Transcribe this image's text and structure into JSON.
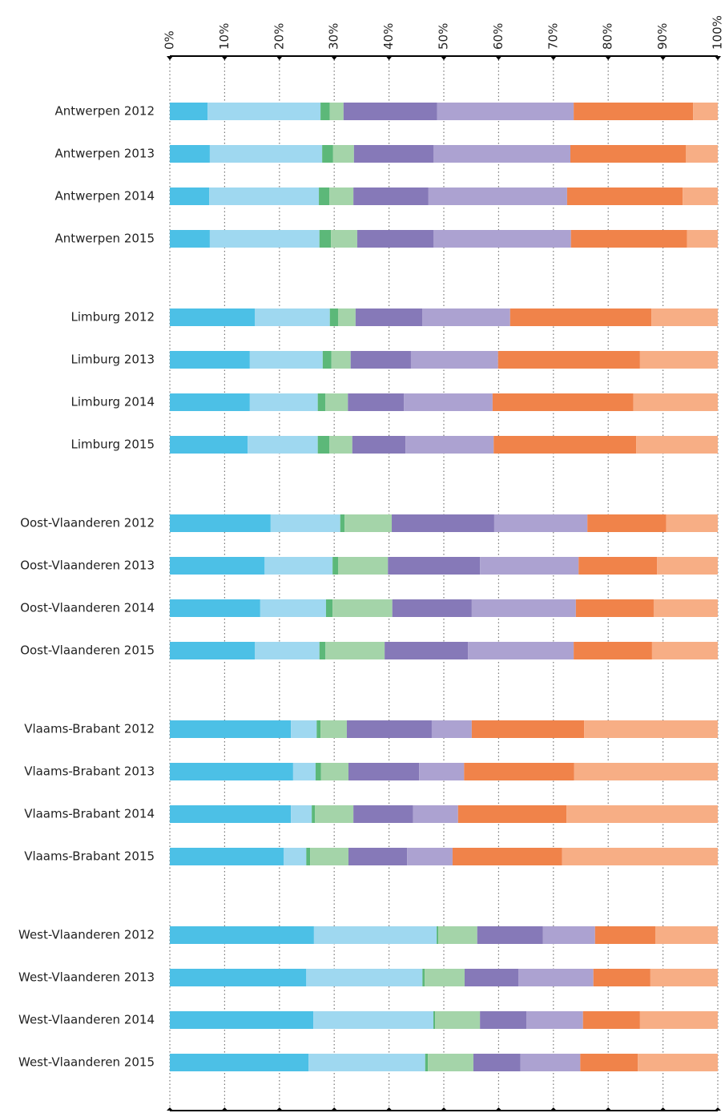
{
  "chart_data": {
    "type": "stacked-bar-horizontal",
    "categories": [
      "Antwerpen 2012",
      "Antwerpen 2013",
      "Antwerpen 2014",
      "Antwerpen 2015",
      "Limburg 2012",
      "Limburg 2013",
      "Limburg 2014",
      "Limburg 2015",
      "Oost-Vlaanderen 2012",
      "Oost-Vlaanderen 2013",
      "Oost-Vlaanderen 2014",
      "Oost-Vlaanderen 2015",
      "Vlaams-Brabant 2012",
      "Vlaams-Brabant 2013",
      "Vlaams-Brabant 2014",
      "Vlaams-Brabant 2015",
      "West-Vlaanderen 2012",
      "West-Vlaanderen 2013",
      "West-Vlaanderen 2014",
      "West-Vlaanderen 2015"
    ],
    "series": [
      {
        "color": "#4cc0e6",
        "values": [
          6.9,
          7.3,
          7.2,
          7.3,
          15.5,
          14.6,
          14.6,
          14.2,
          18.4,
          17.3,
          16.5,
          15.5,
          22.1,
          22.5,
          22.1,
          20.8,
          26.3,
          24.9,
          26.2,
          25.3
        ]
      },
      {
        "color": "#9fd8f0",
        "values": [
          20.6,
          20.5,
          20.0,
          20.0,
          13.7,
          13.3,
          12.4,
          12.8,
          12.7,
          12.4,
          12.0,
          11.8,
          4.7,
          4.1,
          3.8,
          4.1,
          22.4,
          21.2,
          21.9,
          21.3
        ]
      },
      {
        "color": "#5cb879",
        "values": [
          1.7,
          2.0,
          1.9,
          2.1,
          1.5,
          1.6,
          1.4,
          2.1,
          0.8,
          1.0,
          1.2,
          1.1,
          0.7,
          1.0,
          0.6,
          0.7,
          0.3,
          0.4,
          0.3,
          0.5
        ]
      },
      {
        "color": "#a4d4a9",
        "values": [
          2.5,
          3.8,
          4.4,
          4.8,
          3.2,
          3.5,
          4.1,
          4.2,
          8.6,
          9.1,
          10.9,
          10.8,
          4.8,
          5.0,
          7.0,
          7.0,
          7.1,
          7.3,
          8.2,
          8.3
        ]
      },
      {
        "color": "#8679b8",
        "values": [
          17.1,
          14.5,
          13.7,
          13.9,
          12.2,
          11.0,
          10.2,
          9.7,
          18.7,
          16.8,
          14.5,
          15.2,
          15.5,
          12.9,
          10.9,
          10.7,
          12.0,
          9.8,
          8.5,
          8.6
        ]
      },
      {
        "color": "#aca2d1",
        "values": [
          24.9,
          25.0,
          25.3,
          25.1,
          16.0,
          15.9,
          16.2,
          16.1,
          17.0,
          18.0,
          19.0,
          19.3,
          7.3,
          8.2,
          8.2,
          8.3,
          9.5,
          13.7,
          10.3,
          10.9
        ]
      },
      {
        "color": "#f0834a",
        "values": [
          21.8,
          21.1,
          21.1,
          21.2,
          25.8,
          25.9,
          25.7,
          26.0,
          14.4,
          14.3,
          14.2,
          14.3,
          20.5,
          20.1,
          19.8,
          20.0,
          11.0,
          10.4,
          10.4,
          10.5
        ]
      },
      {
        "color": "#f7ae85",
        "values": [
          4.5,
          5.8,
          6.4,
          5.6,
          12.1,
          14.2,
          15.4,
          14.9,
          9.4,
          11.1,
          11.7,
          12.0,
          24.4,
          26.2,
          27.6,
          28.4,
          11.4,
          12.3,
          14.2,
          14.6
        ]
      }
    ],
    "xlim": [
      0,
      100
    ],
    "xticks": [
      {
        "value": 0,
        "label": "0%"
      },
      {
        "value": 10,
        "label": "10%"
      },
      {
        "value": 20,
        "label": "20%"
      },
      {
        "value": 30,
        "label": "30%"
      },
      {
        "value": 40,
        "label": "40%"
      },
      {
        "value": 50,
        "label": "50%"
      },
      {
        "value": 60,
        "label": "60%"
      },
      {
        "value": 70,
        "label": "70%"
      },
      {
        "value": 80,
        "label": "80%"
      },
      {
        "value": 90,
        "label": "90%"
      },
      {
        "value": 100,
        "label": "100%"
      }
    ],
    "grid": true
  }
}
